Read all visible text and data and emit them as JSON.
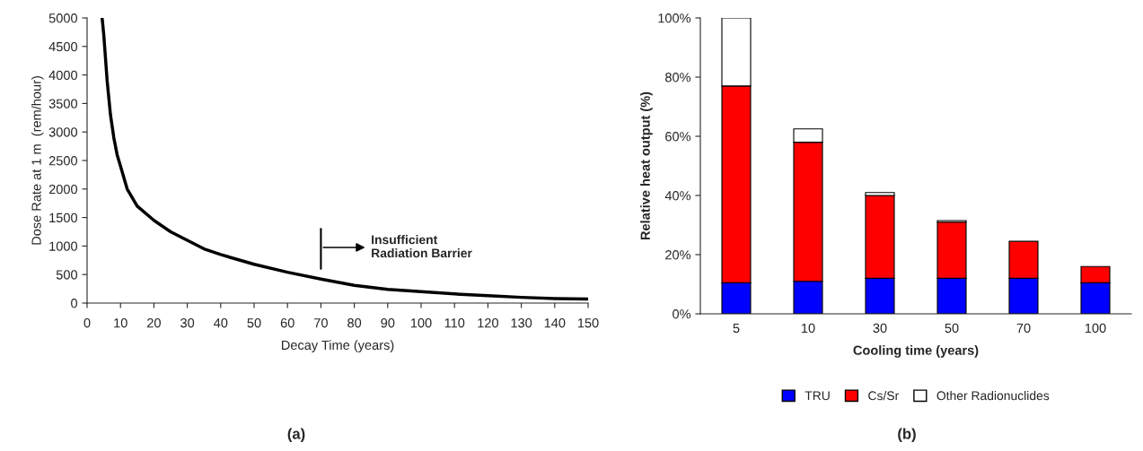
{
  "chart_data": [
    {
      "type": "line",
      "xlabel": "Decay Time (years)",
      "ylabel": "Dose Rate at 1 m  (rem/hour)",
      "x": [
        4.5,
        5,
        6,
        7,
        8,
        9,
        10,
        12,
        15,
        20,
        25,
        30,
        35,
        40,
        50,
        60,
        70,
        80,
        90,
        100,
        110,
        120,
        130,
        140,
        150
      ],
      "series": [
        {
          "color": "#000000",
          "values": [
            5000,
            4700,
            3900,
            3300,
            2900,
            2600,
            2400,
            2000,
            1700,
            1450,
            1250,
            1100,
            950,
            850,
            680,
            540,
            420,
            310,
            240,
            200,
            160,
            130,
            100,
            80,
            70
          ]
        }
      ],
      "xlim": [
        0,
        150
      ],
      "ylim": [
        0,
        5000
      ],
      "xticks": [
        0,
        10,
        20,
        30,
        40,
        50,
        60,
        70,
        80,
        90,
        100,
        110,
        120,
        130,
        140,
        150
      ],
      "yticks": [
        0,
        500,
        1000,
        1500,
        2000,
        2500,
        3000,
        3500,
        4000,
        4500,
        5000
      ],
      "ref_lines": [
        {
          "axis": "x",
          "value": 70,
          "label": "Insufficient\nRadiation Barrier",
          "color": "#000000"
        }
      ],
      "annotations": [
        "(a)"
      ],
      "grid": false,
      "marker": "none",
      "line_style": "solid"
    },
    {
      "type": "bar",
      "stacked": true,
      "xlabel": "Cooling time (years)",
      "ylabel": "Relative heat output (%)",
      "categories": [
        "5",
        "10",
        "30",
        "50",
        "70",
        "100"
      ],
      "series": [
        {
          "name": "TRU",
          "color": "#0000ff",
          "values": [
            10.5,
            11,
            12,
            12,
            12,
            10.5
          ]
        },
        {
          "name": "Cs/Sr",
          "color": "#ff0000",
          "values": [
            66.5,
            47,
            28,
            19,
            12.5,
            5.5
          ]
        },
        {
          "name": "Other Radionuclides",
          "color": "#ffffff",
          "values": [
            23,
            4.5,
            1,
            0.5,
            0,
            0
          ]
        }
      ],
      "ylim": [
        0,
        100
      ],
      "yticks": [
        {
          "value": 0,
          "label": "0%"
        },
        {
          "value": 20,
          "label": "20%"
        },
        {
          "value": 40,
          "label": "40%"
        },
        {
          "value": 60,
          "label": "60%"
        },
        {
          "value": 80,
          "label": "80%"
        },
        {
          "value": 100,
          "label": "100%"
        }
      ],
      "annotations": [
        "(b)"
      ],
      "grid": false,
      "legend": "bottom"
    }
  ]
}
